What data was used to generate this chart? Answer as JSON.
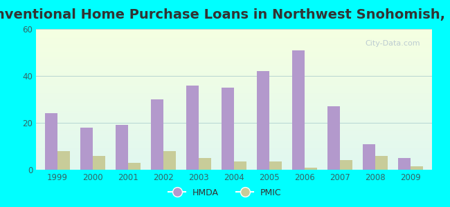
{
  "title": "Conventional Home Purchase Loans in Northwest Snohomish, WA",
  "years": [
    1999,
    2000,
    2001,
    2002,
    2003,
    2004,
    2005,
    2006,
    2007,
    2008,
    2009
  ],
  "hmda": [
    24,
    18,
    19,
    30,
    36,
    35,
    42,
    51,
    27,
    11,
    5
  ],
  "pmic": [
    8,
    6,
    3,
    8,
    5,
    3.5,
    3.5,
    1,
    4,
    6,
    1.5
  ],
  "hmda_color": "#b399cc",
  "pmic_color": "#c8cc99",
  "ylim": [
    0,
    60
  ],
  "yticks": [
    0,
    20,
    40,
    60
  ],
  "outer_bg": "#00ffff",
  "title_fontsize": 14,
  "bar_width": 0.35,
  "watermark": "City-Data.com"
}
